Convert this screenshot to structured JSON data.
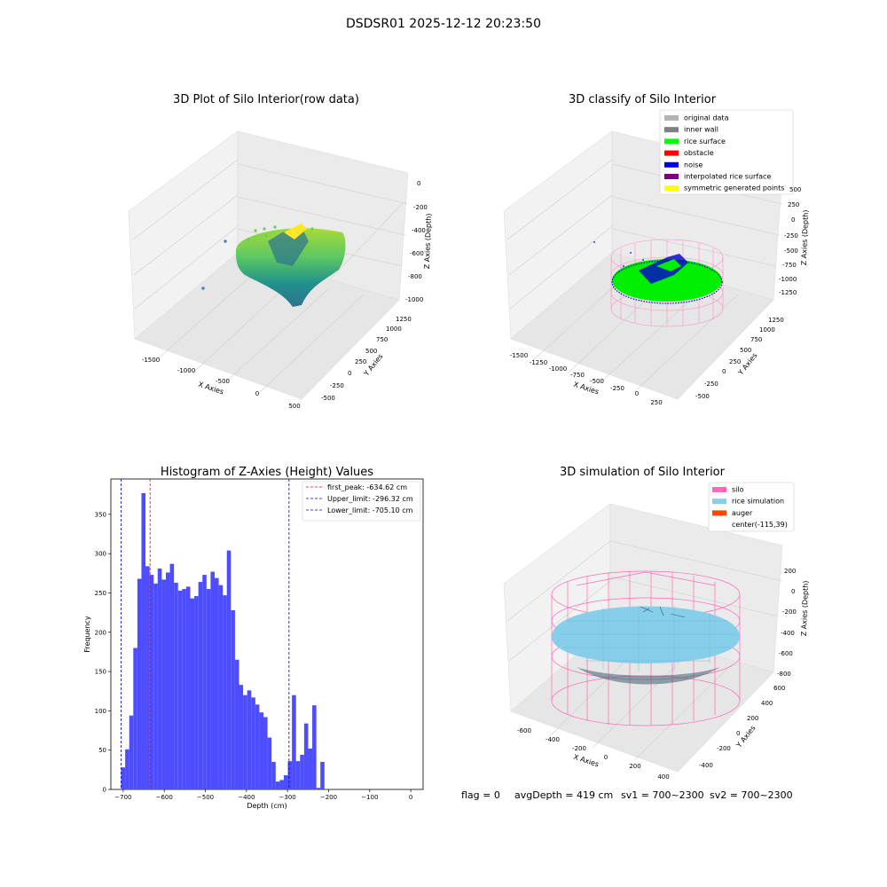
{
  "figure": {
    "suptitle": "DSDSR01 2025-12-12 20:23:50"
  },
  "panels": {
    "raw": {
      "title": "3D Plot of Silo Interior(row data)",
      "xlabel": "X Axies",
      "ylabel": "Y Axies",
      "zlabel": "Z Axies (Depth)",
      "xticks": [
        "-1500",
        "-1000",
        "-500",
        "0",
        "500"
      ],
      "yticks": [
        "-500",
        "-250",
        "0",
        "250",
        "500",
        "750",
        "1000",
        "1250"
      ],
      "zticks": [
        "0",
        "-200",
        "-400",
        "-600",
        "-800",
        "-1000"
      ]
    },
    "classify": {
      "title": "3D classify of Silo Interior",
      "xlabel": "X Axies",
      "ylabel": "Y Axies",
      "zlabel": "Z Axies (Depth)",
      "xticks": [
        "-1500",
        "-1250",
        "-1000",
        "-750",
        "-500",
        "-250",
        "0",
        "250"
      ],
      "yticks": [
        "-500",
        "-250",
        "0",
        "250",
        "500",
        "750",
        "1000",
        "1250"
      ],
      "zticks": [
        "250",
        "0",
        "-250",
        "-500",
        "-750",
        "-1000",
        "-1250"
      ],
      "ztick_top": "500",
      "legend": [
        {
          "label": "original data",
          "color": "#b3b3b3"
        },
        {
          "label": "inner wall",
          "color": "#808080"
        },
        {
          "label": "rice surface",
          "color": "#00ff00"
        },
        {
          "label": "obstacle",
          "color": "#ff0000"
        },
        {
          "label": "noise",
          "color": "#0000ee"
        },
        {
          "label": "interpolated rice surface",
          "color": "#800080"
        },
        {
          "label": "symmetric generated points",
          "color": "#ffff00"
        }
      ]
    },
    "simulation": {
      "title": "3D simulation of Silo Interior",
      "xlabel": "X Axies",
      "ylabel": "Y Axies",
      "zlabel": "Z Axies (Depth)",
      "xticks": [
        "-600",
        "-400",
        "-200",
        "0",
        "200",
        "400"
      ],
      "yticks": [
        "-400",
        "-200",
        "0",
        "200",
        "400",
        "600"
      ],
      "zticks": [
        "200",
        "0",
        "-200",
        "-400",
        "-600",
        "-800"
      ],
      "legend": [
        {
          "label": "silo",
          "color": "#ff69b4"
        },
        {
          "label": "rice simulation",
          "color": "#87ceeb"
        },
        {
          "label": "auger",
          "color": "#ff4500"
        },
        {
          "label": "center(-115,39)",
          "color": ""
        }
      ]
    }
  },
  "chart_data": [
    {
      "type": "bar",
      "title": "Histogram of Z-Axies (Height) Values",
      "xlabel": "Depth (cm)",
      "ylabel": "Frequency",
      "xlim": [
        -730,
        30
      ],
      "ylim": [
        0,
        395
      ],
      "xticks": [
        -700,
        -600,
        -500,
        -400,
        -300,
        -200,
        -100,
        0
      ],
      "yticks": [
        0,
        50,
        100,
        150,
        200,
        250,
        300,
        350
      ],
      "bar_color": "#4d4dff",
      "bin_start": -705.1,
      "bin_width": 9.9,
      "values": [
        28,
        51,
        94,
        180,
        268,
        377,
        284,
        273,
        262,
        281,
        267,
        276,
        287,
        263,
        253,
        255,
        258,
        243,
        246,
        264,
        273,
        255,
        277,
        269,
        260,
        247,
        304,
        228,
        165,
        133,
        120,
        126,
        117,
        108,
        98,
        92,
        66,
        35,
        10,
        12,
        18,
        36,
        120,
        36,
        44,
        84,
        52,
        107,
        2,
        35
      ],
      "vlines": [
        {
          "label": "first_peak: -634.62 cm",
          "x": -634.62,
          "color": "#ff0000"
        },
        {
          "label": "Upper_limit: -296.32 cm",
          "x": -296.32,
          "color": "#0000cc"
        },
        {
          "label": "Lower_limit: -705.10 cm",
          "x": -705.1,
          "color": "#0000cc"
        }
      ],
      "legend_position": "upper-right"
    }
  ],
  "status": {
    "flag": "flag = 0",
    "avg_depth": "avgDepth = 419 cm",
    "sv1": "sv1 = 700~2300",
    "sv2": "sv2 = 700~2300"
  }
}
